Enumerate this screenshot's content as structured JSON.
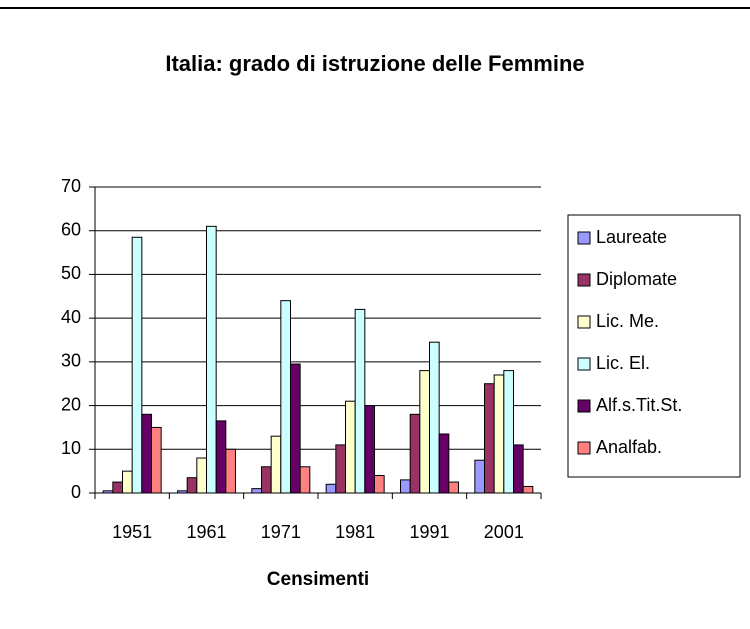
{
  "chart_data": {
    "type": "bar",
    "title": "Italia: grado di istruzione delle Femmine",
    "x_label": "Censimenti",
    "categories": [
      "1951",
      "1961",
      "1971",
      "1981",
      "1991",
      "2001"
    ],
    "series": [
      {
        "name": "Laureate",
        "color": "#9999ff",
        "values": [
          0.5,
          0.5,
          1,
          2,
          3,
          7.5
        ]
      },
      {
        "name": "Diplomate",
        "color": "#993366",
        "values": [
          2.5,
          3.5,
          6,
          11,
          18,
          25
        ]
      },
      {
        "name": "Lic. Me.",
        "color": "#ffffcc",
        "values": [
          5,
          8,
          13,
          21,
          28,
          27
        ]
      },
      {
        "name": "Lic. El.",
        "color": "#ccffff",
        "values": [
          58.5,
          61,
          44,
          42,
          34.5,
          28
        ]
      },
      {
        "name": "Alf.s.Tit.St.",
        "color": "#660066",
        "values": [
          18,
          16.5,
          29.5,
          20,
          13.5,
          11
        ]
      },
      {
        "name": "Analfab.",
        "color": "#ff8080",
        "values": [
          15,
          10,
          6,
          4,
          2.5,
          1.5
        ]
      }
    ],
    "ylim": [
      0,
      70
    ],
    "yticks": [
      0,
      10,
      20,
      30,
      40,
      50,
      60,
      70
    ],
    "grid": true,
    "legend": "right"
  }
}
